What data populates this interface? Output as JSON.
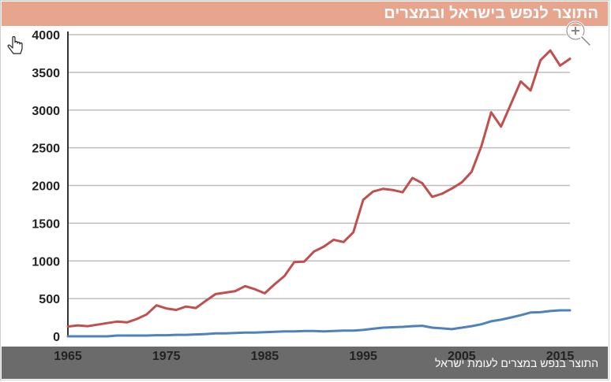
{
  "header": {
    "title": "התוצר לנפש בישראל ובמצרים"
  },
  "footer": {
    "caption": "התוצר בנפש במצרים לעומת ישראל"
  },
  "icons": {
    "zoom": "zoom-in-icon",
    "cursor": "hand-pointer-icon"
  },
  "colors": {
    "title_bar": "#e8a58e",
    "israel": "#c0504d",
    "egypt": "#4f81bd",
    "footer_bar": "#6b6b6b",
    "grid": "#bdbdbd"
  },
  "chart_data": {
    "type": "line",
    "title": "התוצר לנפש בישראל ובמצרים",
    "xlabel": "",
    "ylabel": "",
    "xlim": [
      1965,
      2016
    ],
    "ylim": [
      0,
      4000
    ],
    "x_ticks": [
      1965,
      1975,
      1985,
      1995,
      2005,
      2015
    ],
    "y_ticks": [
      0,
      500,
      1000,
      1500,
      2000,
      2500,
      3000,
      3500,
      4000
    ],
    "grid": true,
    "legend": "none",
    "x": [
      1965,
      1966,
      1967,
      1968,
      1969,
      1970,
      1971,
      1972,
      1973,
      1974,
      1975,
      1976,
      1977,
      1978,
      1979,
      1980,
      1981,
      1982,
      1983,
      1984,
      1985,
      1986,
      1987,
      1988,
      1989,
      1990,
      1991,
      1992,
      1993,
      1994,
      1995,
      1996,
      1997,
      1998,
      1999,
      2000,
      2001,
      2002,
      2003,
      2004,
      2005,
      2006,
      2007,
      2008,
      2009,
      2010,
      2011,
      2012,
      2013,
      2014,
      2015,
      2016
    ],
    "series": [
      {
        "color": "#c0504d",
        "values": [
          130,
          145,
          135,
          155,
          175,
          195,
          185,
          230,
          290,
          410,
          370,
          350,
          395,
          375,
          470,
          560,
          580,
          600,
          665,
          625,
          570,
          690,
          800,
          985,
          990,
          1125,
          1190,
          1280,
          1250,
          1380,
          1810,
          1920,
          1955,
          1940,
          1910,
          2100,
          2030,
          1850,
          1890,
          1960,
          2040,
          2180,
          2520,
          2970,
          2780,
          3080,
          3380,
          3260,
          3660,
          3790,
          3590,
          3680
        ]
      },
      {
        "color": "#4f81bd",
        "values": [
          0,
          0,
          0,
          0,
          0,
          10,
          10,
          10,
          10,
          15,
          15,
          20,
          20,
          25,
          30,
          40,
          40,
          45,
          50,
          50,
          55,
          60,
          65,
          65,
          70,
          70,
          65,
          70,
          75,
          75,
          85,
          100,
          115,
          120,
          125,
          135,
          140,
          115,
          105,
          95,
          115,
          135,
          160,
          200,
          220,
          250,
          280,
          315,
          320,
          335,
          345,
          345
        ]
      }
    ]
  }
}
